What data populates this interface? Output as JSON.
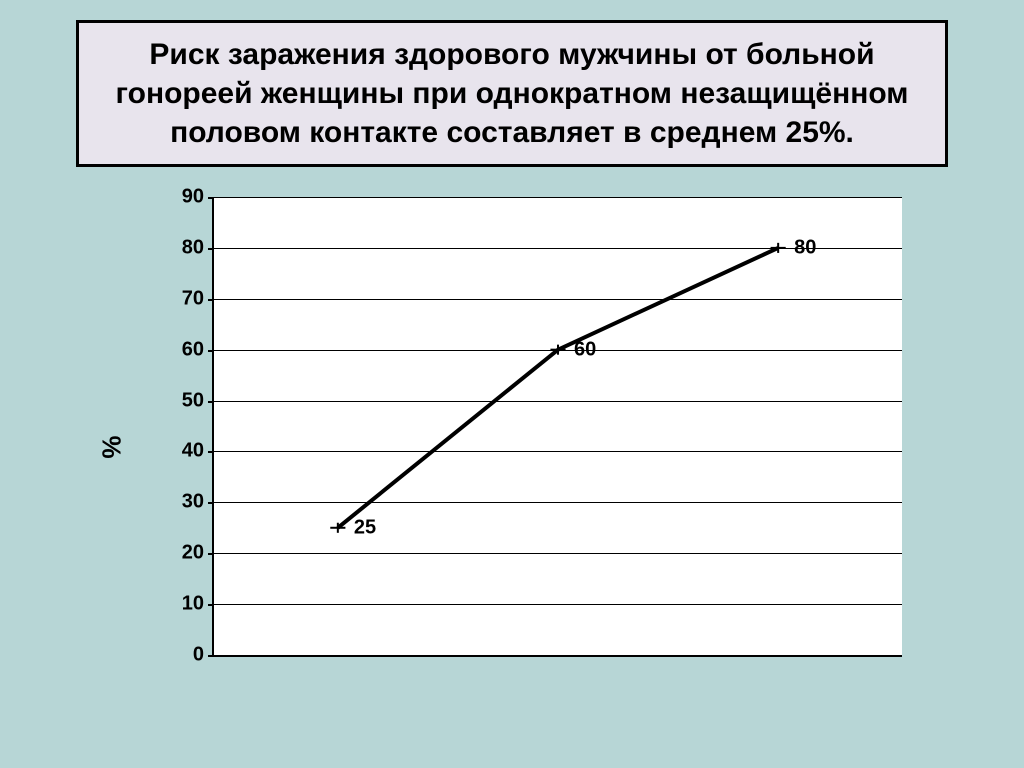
{
  "page": {
    "background_color": "#b7d6d6"
  },
  "title": {
    "text": "Риск заражения здорового мужчины от больной гонореей женщины при однократном незащищённом половом контакте составляет в среднем 25%.",
    "fontsize": 30,
    "fill": "#e8e4ed",
    "border_color": "#000000",
    "text_color": "#000000"
  },
  "chart": {
    "type": "line",
    "ylabel": "%",
    "ylabel_fontsize": 26,
    "ylim": [
      0,
      90
    ],
    "ytick_step": 10,
    "yticks": [
      0,
      10,
      20,
      30,
      40,
      50,
      60,
      70,
      80,
      90
    ],
    "tick_fontsize": 20,
    "plot_background": "#ffffff",
    "axis_color": "#000000",
    "grid_color": "#000000",
    "grid_width": 1,
    "series": {
      "x": [
        0.18,
        0.5,
        0.82
      ],
      "values": [
        25,
        60,
        80
      ],
      "line_color": "#000000",
      "line_width": 4,
      "marker_color": "#000000",
      "marker_size": 7,
      "label_fontsize": 20,
      "label_color": "#000000",
      "label_dx": 16
    }
  }
}
